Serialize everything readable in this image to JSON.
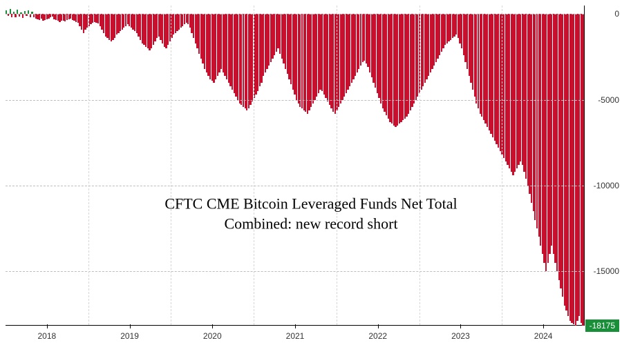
{
  "chart": {
    "type": "bar",
    "title_line1": "CFTC CME Bitcoin Leveraged Funds Net Total",
    "title_line2": "Combined: new record short",
    "title_fontsize": 22,
    "background_color": "#ffffff",
    "grid_color": "#bdbdbd",
    "neg_bar_color": "#c8102e",
    "pos_bar_color": "#1a8f3a",
    "border_color": "#000000",
    "ylim_min": -18175,
    "ylim_max": 500,
    "y_ticks": [
      0,
      -5000,
      -10000,
      -15000
    ],
    "last_value": -18175,
    "last_badge_bg": "#1a8f3a",
    "last_badge_fg": "#ffffff",
    "x_categories": [
      "2018",
      "2019",
      "2020",
      "2021",
      "2022",
      "2023",
      "2024"
    ],
    "data": [
      200,
      -120,
      300,
      -200,
      150,
      -180,
      250,
      -150,
      100,
      -220,
      180,
      -100,
      200,
      -180,
      150,
      -200,
      -250,
      -300,
      -350,
      -280,
      -400,
      -350,
      -300,
      -250,
      -200,
      -150,
      -300,
      -350,
      -400,
      -450,
      -400,
      -380,
      -420,
      -350,
      -300,
      -280,
      -350,
      -400,
      -450,
      -500,
      -700,
      -900,
      -1100,
      -900,
      -800,
      -700,
      -600,
      -500,
      -450,
      -500,
      -550,
      -700,
      -900,
      -1100,
      -1300,
      -1400,
      -1500,
      -1600,
      -1500,
      -1400,
      -1200,
      -1100,
      -1000,
      -900,
      -800,
      -700,
      -600,
      -700,
      -800,
      -900,
      -1000,
      -1100,
      -1300,
      -1500,
      -1700,
      -1800,
      -1900,
      -2000,
      -2100,
      -2000,
      -1800,
      -1600,
      -1400,
      -1300,
      -1500,
      -1700,
      -1900,
      -2000,
      -1800,
      -1600,
      -1400,
      -1200,
      -1100,
      -1000,
      -900,
      -800,
      -700,
      -600,
      -500,
      -600,
      -800,
      -1100,
      -1400,
      -1700,
      -2000,
      -2300,
      -2600,
      -2900,
      -3200,
      -3400,
      -3600,
      -3800,
      -3900,
      -4000,
      -3800,
      -3600,
      -3400,
      -3200,
      -3400,
      -3600,
      -3800,
      -4000,
      -4200,
      -4400,
      -4600,
      -4800,
      -5000,
      -5200,
      -5300,
      -5400,
      -5500,
      -5600,
      -5500,
      -5300,
      -5100,
      -4900,
      -4700,
      -4500,
      -4200,
      -4000,
      -3600,
      -3400,
      -3200,
      -3000,
      -2800,
      -2600,
      -2400,
      -2200,
      -2000,
      -2300,
      -2600,
      -2900,
      -3200,
      -3500,
      -3800,
      -4100,
      -4400,
      -4700,
      -5000,
      -5200,
      -5400,
      -5500,
      -5600,
      -5700,
      -5800,
      -5600,
      -5400,
      -5200,
      -5000,
      -4800,
      -4600,
      -4400,
      -4500,
      -4700,
      -4900,
      -5100,
      -5300,
      -5500,
      -5700,
      -5800,
      -5600,
      -5400,
      -5200,
      -5000,
      -4800,
      -4600,
      -4400,
      -4200,
      -4000,
      -3800,
      -3600,
      -3400,
      -3200,
      -3000,
      -2800,
      -2700,
      -2900,
      -3100,
      -3400,
      -3700,
      -4000,
      -4300,
      -4600,
      -4900,
      -5200,
      -5500,
      -5700,
      -5900,
      -6100,
      -6300,
      -6400,
      -6500,
      -6600,
      -6500,
      -6400,
      -6300,
      -6200,
      -6100,
      -6000,
      -5800,
      -5600,
      -5400,
      -5200,
      -5000,
      -4800,
      -4600,
      -4400,
      -4200,
      -4000,
      -3800,
      -3600,
      -3400,
      -3200,
      -3000,
      -2800,
      -2600,
      -2400,
      -2200,
      -2000,
      -1800,
      -1700,
      -1600,
      -1500,
      -1400,
      -1300,
      -1200,
      -1400,
      -1700,
      -2000,
      -2400,
      -2800,
      -3200,
      -3600,
      -4000,
      -4400,
      -4800,
      -5200,
      -5500,
      -5800,
      -6000,
      -6200,
      -6400,
      -6600,
      -6800,
      -7000,
      -7200,
      -7400,
      -7600,
      -7800,
      -8000,
      -8200,
      -8400,
      -8600,
      -8800,
      -9000,
      -9200,
      -9400,
      -9200,
      -9000,
      -8800,
      -8600,
      -8800,
      -9200,
      -9600,
      -10000,
      -10500,
      -11000,
      -11500,
      -12000,
      -12500,
      -13000,
      -13500,
      -14000,
      -14500,
      -15000,
      -14500,
      -14000,
      -13500,
      -14000,
      -14500,
      -15000,
      -15500,
      -16000,
      -16500,
      -17000,
      -17300,
      -17600,
      -17900,
      -18000,
      -18100,
      -18175,
      -17900,
      -17600,
      -18000,
      -18175
    ]
  }
}
